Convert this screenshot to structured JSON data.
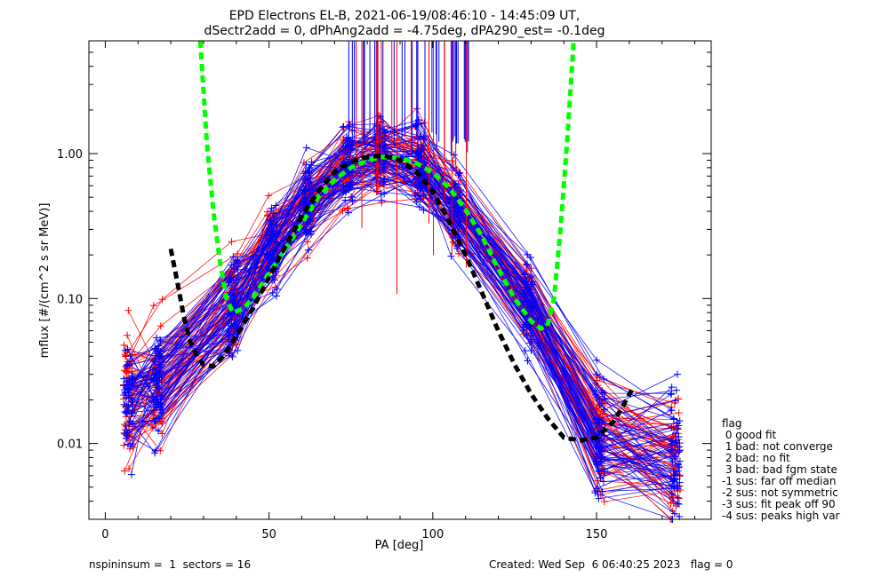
{
  "chart_data": {
    "type": "line",
    "title_line1": "EPD Electrons EL-B, 2021-06-19/08:46:10 - 14:45:09 UT,",
    "title_line2": "dSectr2add = 0, dPhAng2add = -4.75deg, dPA290_est=  -0.1deg",
    "xlabel": "PA [deg]",
    "ylabel": "mflux [#/(cm^2 s sr MeV)]",
    "xlim": [
      -5,
      185
    ],
    "ylim": [
      0.003,
      6.0
    ],
    "yscale": "log",
    "x_ticks": [
      0,
      50,
      100,
      150
    ],
    "x_tick_labels": [
      "0",
      "50",
      "100",
      "150"
    ],
    "y_ticks": [
      0.01,
      0.1,
      1.0
    ],
    "y_tick_labels": [
      "0.01",
      "0.10",
      "1.00"
    ],
    "grid": false,
    "sector_pa_columns": [
      7,
      16,
      39,
      51,
      62,
      74,
      84,
      96,
      107,
      129,
      151,
      174
    ],
    "central_peak": {
      "pa_deg": 85,
      "flux": 0.92
    },
    "series": [
      {
        "color": "#ff0000",
        "style": "line+plus",
        "description_count": 60,
        "x": [
          7,
          16,
          39,
          51,
          62,
          74,
          84,
          96,
          107,
          129,
          151,
          174
        ],
        "typical_values": [
          0.02,
          0.025,
          0.09,
          0.22,
          0.45,
          0.8,
          0.95,
          0.8,
          0.4,
          0.09,
          0.012,
          0.008
        ]
      },
      {
        "color": "#0000ff",
        "style": "line+plus",
        "description_count": 60,
        "x": [
          7,
          16,
          39,
          51,
          62,
          74,
          84,
          96,
          107,
          129,
          151,
          174
        ],
        "typical_values": [
          0.02,
          0.025,
          0.09,
          0.22,
          0.45,
          0.8,
          0.95,
          0.8,
          0.4,
          0.09,
          0.012,
          0.008
        ]
      },
      {
        "color": "#00ff00",
        "style": "dashed",
        "x": [
          29,
          31,
          33,
          35,
          37,
          39,
          42,
          45,
          50,
          55,
          60,
          65,
          70,
          75,
          80,
          85,
          90,
          95,
          100,
          105,
          110,
          115,
          120,
          125,
          130,
          133,
          135,
          137,
          139,
          141,
          143
        ],
        "y": [
          6.0,
          1.2,
          0.4,
          0.18,
          0.1,
          0.08,
          0.085,
          0.1,
          0.15,
          0.22,
          0.33,
          0.5,
          0.66,
          0.8,
          0.9,
          0.95,
          0.93,
          0.86,
          0.74,
          0.58,
          0.41,
          0.27,
          0.16,
          0.1,
          0.07,
          0.062,
          0.065,
          0.1,
          0.3,
          1.2,
          6.0
        ]
      },
      {
        "color": "#000000",
        "style": "dashed",
        "x": [
          20,
          22,
          24,
          26,
          28,
          30,
          33,
          36,
          40,
          45,
          50,
          55,
          60,
          65,
          70,
          75,
          80,
          85,
          90,
          95,
          100,
          105,
          110,
          115,
          120,
          125,
          130,
          135,
          140,
          145,
          150,
          155,
          158,
          161
        ],
        "y": [
          0.22,
          0.13,
          0.075,
          0.05,
          0.04,
          0.035,
          0.034,
          0.04,
          0.055,
          0.085,
          0.14,
          0.23,
          0.37,
          0.55,
          0.75,
          0.88,
          0.95,
          0.97,
          0.9,
          0.75,
          0.55,
          0.34,
          0.2,
          0.11,
          0.06,
          0.035,
          0.022,
          0.015,
          0.011,
          0.0105,
          0.011,
          0.014,
          0.018,
          0.024
        ]
      }
    ],
    "legend": {
      "title": "flag",
      "placement": "right",
      "entries": [
        " 0 good fit",
        " 1 bad: not converge",
        " 2 bad: no fit",
        " 3 bad: bad fgm state",
        "-1 sus: far off median",
        "-2 sus: not symmetric",
        "-3 sus: fit peak off 90",
        "-4 sus: peaks high var"
      ]
    }
  },
  "footer": {
    "left": "nspininsum =  1  sectors = 16",
    "right": "Created: Wed Sep  6 06:40:25 2023   flag = 0"
  },
  "colors": {
    "red": "#ff0000",
    "blue": "#0000ff",
    "green": "#00ff00",
    "black": "#000000"
  }
}
